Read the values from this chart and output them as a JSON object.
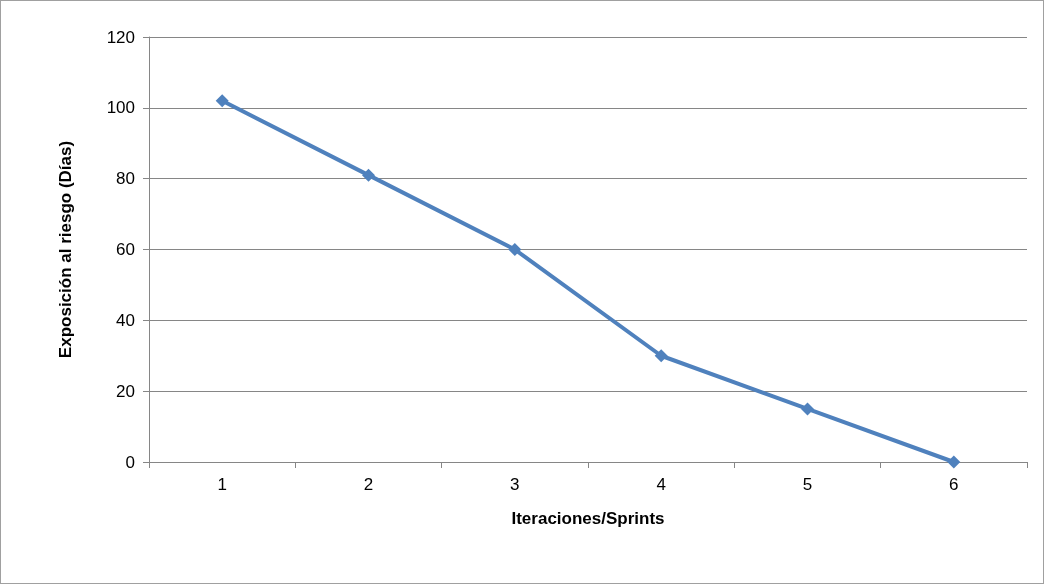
{
  "chart_data": {
    "type": "line",
    "xlabel": "Iteraciones/Sprints",
    "ylabel": "Exposición al riesgo (Días)",
    "categories": [
      "1",
      "2",
      "3",
      "4",
      "5",
      "6"
    ],
    "series": [
      {
        "color": "#4f81bd",
        "values": [
          102,
          81,
          60,
          30,
          15,
          0
        ]
      }
    ],
    "ylim": [
      0,
      120
    ],
    "yticks": [
      0,
      20,
      40,
      60,
      80,
      100,
      120
    ],
    "grid": "y",
    "marker": "diamond",
    "line_style": "solid"
  }
}
